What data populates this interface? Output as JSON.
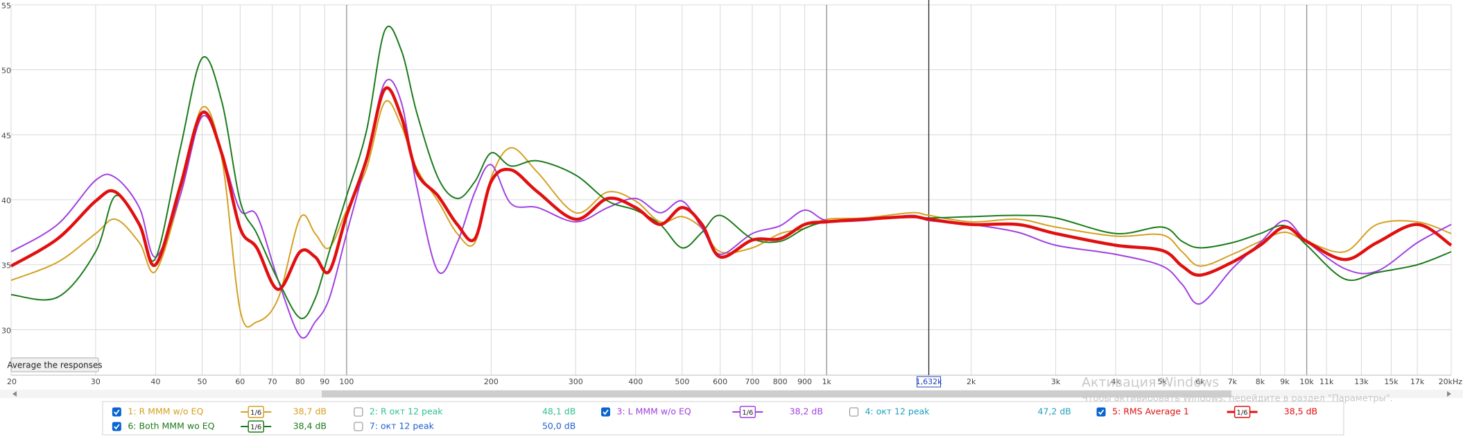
{
  "chart_data": {
    "type": "line",
    "xscale": "log",
    "x": [
      20,
      25,
      30,
      33,
      37,
      40,
      45,
      50,
      55,
      60,
      65,
      72,
      80,
      86,
      92,
      100,
      110,
      120,
      130,
      140,
      155,
      170,
      185,
      200,
      220,
      250,
      300,
      350,
      400,
      450,
      500,
      550,
      600,
      700,
      800,
      900,
      1000,
      1200,
      1500,
      1632,
      2000,
      2500,
      3000,
      4000,
      5000,
      5500,
      6000,
      7000,
      8000,
      9000,
      10000,
      12000,
      14000,
      17000,
      20000
    ],
    "xlim": [
      20,
      20000
    ],
    "xticks": [
      20,
      30,
      40,
      50,
      60,
      70,
      80,
      90,
      100,
      200,
      300,
      400,
      500,
      600,
      700,
      800,
      900,
      {
        "value": 1000,
        "label": "1k"
      },
      {
        "value": 2000,
        "label": "2k"
      },
      {
        "value": 3000,
        "label": "3k"
      },
      {
        "value": 4000,
        "label": "4k"
      },
      {
        "value": 5000,
        "label": "5k"
      },
      {
        "value": 6000,
        "label": "6k"
      },
      {
        "value": 7000,
        "label": "7k"
      },
      {
        "value": 8000,
        "label": "8k"
      },
      {
        "value": 9000,
        "label": "9k"
      },
      {
        "value": 10000,
        "label": "10k"
      },
      {
        "value": 11000,
        "label": "11k"
      },
      {
        "value": 13000,
        "label": "13k"
      },
      {
        "value": 15000,
        "label": "15k"
      },
      {
        "value": 17000,
        "label": "17k"
      },
      {
        "value": 20000,
        "label": "20kHz"
      }
    ],
    "ylim": [
      26.5,
      55
    ],
    "yticks": [
      30,
      35,
      40,
      45,
      50,
      55
    ],
    "grid": true,
    "cursor": {
      "value": 1632,
      "label": "1,632k"
    },
    "series": [
      {
        "name": "1: R MMM w/o EQ",
        "color": "#d4a020",
        "checked": true,
        "smoothing": "1/6",
        "level": "38,7 dB",
        "values": [
          33.8,
          35.2,
          37.4,
          38.5,
          36.7,
          34.5,
          40.3,
          47.1,
          43.1,
          31.5,
          30.6,
          32.4,
          38.6,
          37.4,
          36.3,
          39.2,
          42.4,
          47.5,
          45.7,
          42.4,
          39.9,
          37.4,
          36.7,
          41.7,
          44.0,
          42.1,
          39.0,
          40.6,
          39.9,
          38.3,
          38.7,
          37.8,
          36.0,
          36.3,
          37.4,
          37.8,
          38.5,
          38.6,
          39.0,
          38.8,
          38.3,
          38.5,
          37.9,
          37.2,
          37.3,
          36.0,
          34.9,
          35.8,
          36.8,
          37.5,
          36.8,
          36.0,
          38.1,
          38.3,
          37.4
        ]
      },
      {
        "name": "2: R окт 12 peak",
        "color": "#30c090",
        "checked": false,
        "level": "48,1 dB"
      },
      {
        "name": "3: L MMM w/o EQ",
        "color": "#a040e0",
        "checked": true,
        "smoothing": "1/6",
        "level": "38,2 dB",
        "values": [
          36.0,
          38.1,
          41.5,
          41.7,
          39.4,
          35.6,
          40.3,
          46.4,
          43.5,
          39.2,
          38.8,
          33.8,
          29.5,
          30.6,
          32.4,
          37.4,
          43.1,
          49.0,
          47.5,
          41.0,
          34.5,
          36.7,
          40.6,
          42.7,
          39.7,
          39.4,
          38.3,
          39.4,
          40.1,
          39.0,
          39.9,
          37.8,
          35.8,
          37.4,
          38.0,
          39.2,
          38.4,
          38.4,
          38.8,
          38.4,
          38.1,
          37.5,
          36.5,
          35.8,
          34.9,
          33.5,
          32.0,
          34.7,
          36.7,
          38.4,
          36.8,
          34.7,
          34.5,
          36.7,
          38.1
        ]
      },
      {
        "name": "4: окт 12 peak",
        "color": "#20a0c0",
        "checked": false,
        "level": "47,2 dB"
      },
      {
        "name": "5: RMS Average 1",
        "color": "#e01010",
        "checked": true,
        "smoothing": "1/6",
        "level": "38,5 dB",
        "values": [
          34.9,
          37.0,
          39.9,
          40.6,
          38.1,
          35.0,
          41.0,
          46.7,
          43.5,
          37.8,
          36.3,
          33.1,
          36.0,
          35.6,
          34.5,
          38.8,
          43.1,
          48.5,
          46.4,
          42.1,
          40.3,
          38.1,
          37.0,
          41.4,
          42.3,
          40.6,
          38.5,
          40.1,
          39.4,
          38.1,
          39.4,
          38.1,
          35.6,
          36.9,
          37.0,
          38.1,
          38.3,
          38.5,
          38.7,
          38.5,
          38.1,
          38.1,
          37.4,
          36.5,
          36.1,
          34.9,
          34.2,
          35.2,
          36.5,
          37.9,
          36.8,
          35.4,
          36.7,
          38.1,
          36.5
        ]
      },
      {
        "name": "6: Both MMM wo EQ",
        "color": "#1a7a1a",
        "checked": true,
        "smoothing": "1/6",
        "level": "38,4 dB",
        "values": [
          32.7,
          32.5,
          36.0,
          40.3,
          38.0,
          35.5,
          43.9,
          50.9,
          47.5,
          39.9,
          37.4,
          33.8,
          30.9,
          32.4,
          36.0,
          40.3,
          45.3,
          53.0,
          51.5,
          46.7,
          41.7,
          40.1,
          41.4,
          43.6,
          42.6,
          43.0,
          41.9,
          39.9,
          39.2,
          38.1,
          36.3,
          37.5,
          38.8,
          37.0,
          36.8,
          37.8,
          38.3,
          38.5,
          38.7,
          38.6,
          38.7,
          38.8,
          38.6,
          37.4,
          37.9,
          36.8,
          36.3,
          36.7,
          37.4,
          38.0,
          36.5,
          33.9,
          34.4,
          35.0,
          36.0
        ]
      },
      {
        "name": "7: окт 12 peak",
        "color": "#2060d0",
        "checked": false,
        "level": "50,0 dB"
      }
    ]
  },
  "button": "Average the responses",
  "watermark": {
    "title": "Активация Windows",
    "text": "Чтобы активировать Windows, перейдите в раздел \"Параметры\"."
  }
}
